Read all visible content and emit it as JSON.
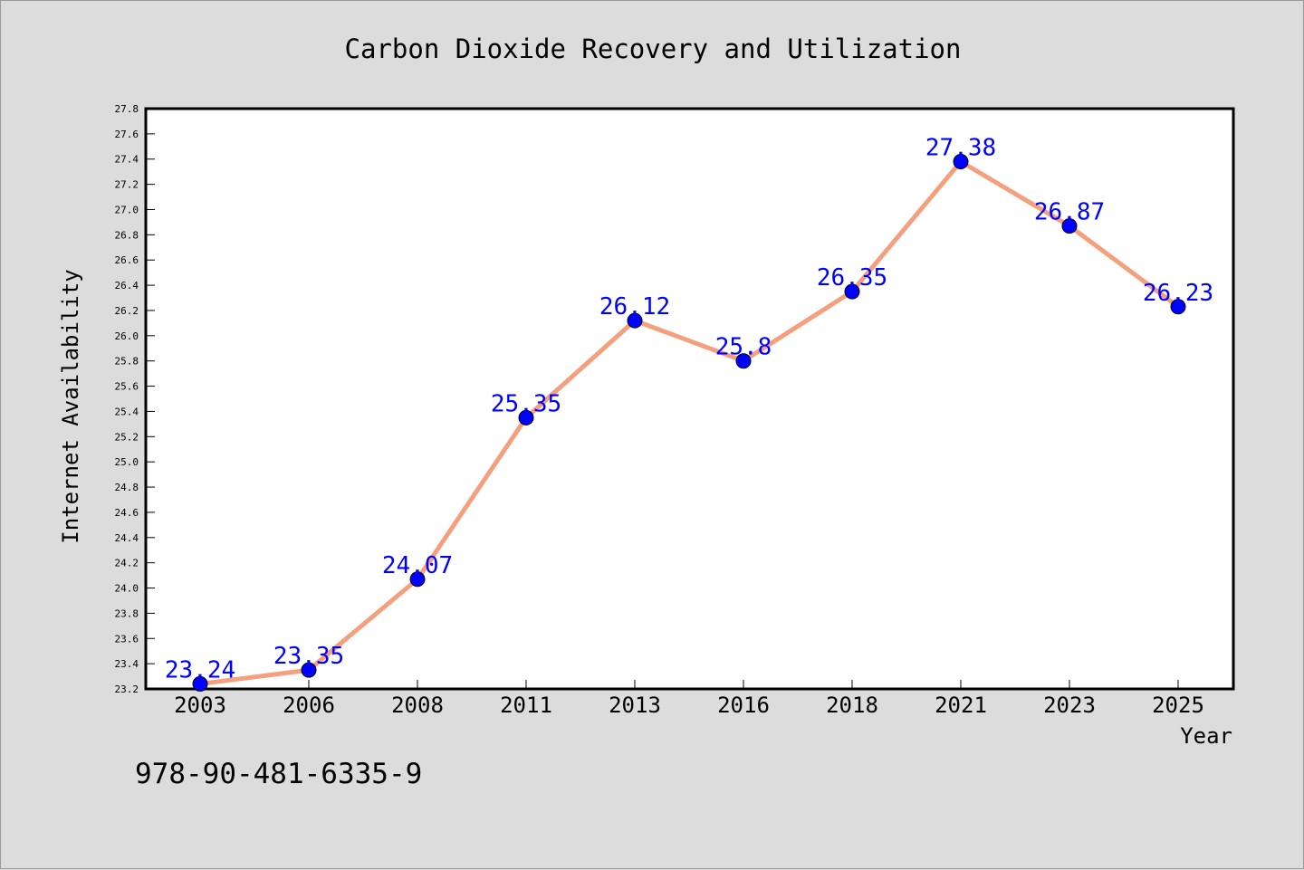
{
  "chart_data": {
    "type": "line",
    "title": "Carbon Dioxide Recovery and Utilization",
    "xlabel": "Year",
    "ylabel": "Internet Availability",
    "categories": [
      "2003",
      "2006",
      "2008",
      "2011",
      "2013",
      "2016",
      "2018",
      "2021",
      "2023",
      "2025"
    ],
    "series": [
      {
        "values": [
          23.24,
          23.35,
          24.07,
          25.35,
          26.12,
          25.8,
          26.35,
          27.38,
          26.87,
          26.23
        ],
        "data_labels": [
          "23.24",
          "23.35",
          "24.07",
          "25.35",
          "26.12",
          "25.8",
          "26.35",
          "27.38",
          "26.87",
          "26.23"
        ],
        "line_color": "#f4a07e",
        "marker_color": "#0000ff"
      }
    ],
    "ylim": [
      23.2,
      27.8
    ],
    "yticks": [
      "23.2",
      "23.4",
      "23.6",
      "23.8",
      "24.0",
      "24.2",
      "24.4",
      "24.6",
      "24.8",
      "25.0",
      "25.2",
      "25.4",
      "25.6",
      "25.8",
      "26.0",
      "26.2",
      "26.4",
      "26.6",
      "26.8",
      "27.0",
      "27.2",
      "27.4",
      "27.6",
      "27.8"
    ],
    "grid": false,
    "legend": "none"
  },
  "annotation_text": "978-90-481-6335-9",
  "colors": {
    "background": "#dcdcdc",
    "plot_background": "#ffffff",
    "line": "#f4a07e",
    "marker": "#0000ff",
    "data_label": "#0000ff"
  }
}
